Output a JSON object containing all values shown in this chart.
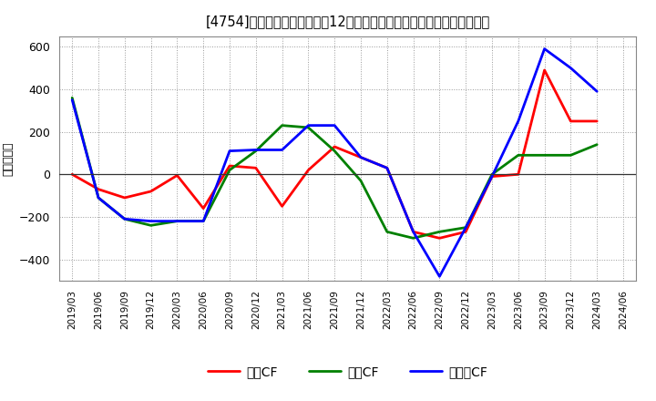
{
  "title": "[4754]　キャッシュフローの12か月移動合計の対前年同期増減額の推移",
  "ylabel": "（百万円）",
  "x_labels": [
    "2019/03",
    "2019/06",
    "2019/09",
    "2019/12",
    "2020/03",
    "2020/06",
    "2020/09",
    "2020/12",
    "2021/03",
    "2021/06",
    "2021/09",
    "2021/12",
    "2022/03",
    "2022/06",
    "2022/09",
    "2022/12",
    "2023/03",
    "2023/06",
    "2023/09",
    "2023/12",
    "2024/03",
    "2024/06"
  ],
  "operating_cf": [
    0,
    -70,
    -110,
    -80,
    -5,
    -160,
    40,
    30,
    -150,
    20,
    130,
    80,
    30,
    -270,
    -300,
    -270,
    -10,
    0,
    490,
    250,
    250,
    null
  ],
  "investing_cf": [
    360,
    -110,
    -210,
    -240,
    -220,
    -220,
    20,
    110,
    230,
    220,
    110,
    -30,
    -270,
    -300,
    -270,
    -250,
    0,
    90,
    90,
    90,
    140,
    null
  ],
  "free_cf": [
    350,
    -110,
    -210,
    -220,
    -220,
    -220,
    110,
    115,
    115,
    230,
    230,
    80,
    30,
    -270,
    -480,
    -250,
    -10,
    250,
    590,
    500,
    390,
    null
  ],
  "colors": {
    "operating": "#ff0000",
    "investing": "#008000",
    "free": "#0000ff"
  },
  "ylim": [
    -500,
    650
  ],
  "yticks": [
    -400,
    -200,
    0,
    200,
    400,
    600
  ],
  "bg_color": "#ffffff",
  "grid_color": "#aaaaaa",
  "legend_labels": [
    "営業CF",
    "投資CF",
    "フリーCF"
  ]
}
